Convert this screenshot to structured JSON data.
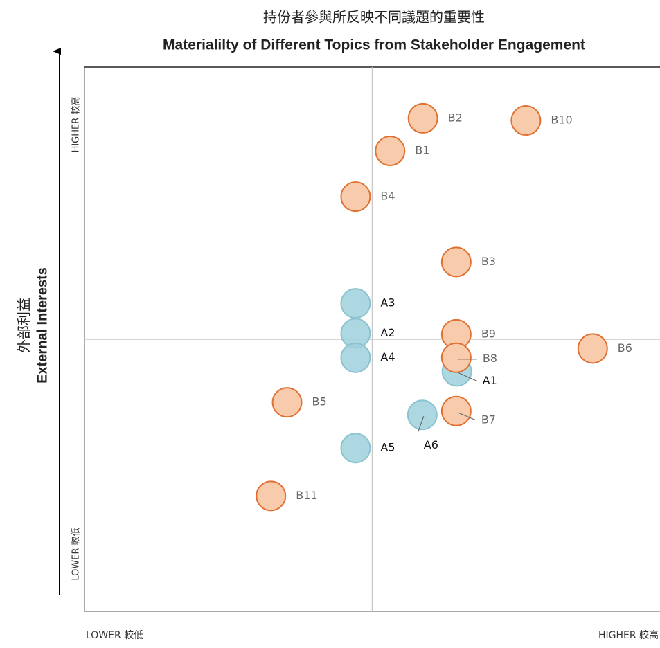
{
  "chart_data": {
    "type": "scatter",
    "title": "持份者參與所反映不同議題的重要性",
    "subtitle": "Materialilty of Different Topics from Stakeholder Engagement",
    "y_label_cn": "外部利益",
    "y_label": "External Interests",
    "y_high": "HIGHER 較高",
    "y_low": "LOWER 較低",
    "x_low": "LOWER 較低",
    "x_high": "HIGHER 較高",
    "xlim": [
      0,
      100
    ],
    "ylim": [
      0,
      100
    ],
    "quadrant_lines": {
      "x": 50,
      "y": 50
    },
    "points": [
      {
        "label": "B2",
        "x": 58.8,
        "y": 90.6,
        "color": "#f8cbad"
      },
      {
        "label": "B10",
        "x": 76.7,
        "y": 90.2,
        "color": "#f8cbad"
      },
      {
        "label": "B1",
        "x": 53.1,
        "y": 84.6,
        "color": "#f8cbad"
      },
      {
        "label": "B4",
        "x": 47.1,
        "y": 76.2,
        "color": "#f8cbad"
      },
      {
        "label": "B3",
        "x": 64.6,
        "y": 64.2,
        "color": "#f8cbad"
      },
      {
        "label": "A3",
        "x": 47.1,
        "y": 56.6,
        "color": "#9fd0dc"
      },
      {
        "label": "A2",
        "x": 47.1,
        "y": 51.1,
        "color": "#9fd0dc"
      },
      {
        "label": "B9",
        "x": 64.6,
        "y": 50.9,
        "color": "#f8cbad"
      },
      {
        "label": "B6",
        "x": 88.3,
        "y": 48.3,
        "color": "#f8cbad"
      },
      {
        "label": "A4",
        "x": 47.1,
        "y": 46.6,
        "color": "#9fd0dc"
      },
      {
        "label": "A1",
        "x": 64.7,
        "y": 44.1,
        "color": "#9fd0dc"
      },
      {
        "label": "B8",
        "x": 64.6,
        "y": 46.6,
        "color": "#f8cbad"
      },
      {
        "label": "B5",
        "x": 35.2,
        "y": 38.4,
        "color": "#f8cbad"
      },
      {
        "label": "A6",
        "x": 58.7,
        "y": 36.1,
        "color": "#9fd0dc"
      },
      {
        "label": "B7",
        "x": 64.6,
        "y": 36.8,
        "color": "#f8cbad"
      },
      {
        "label": "A5",
        "x": 47.1,
        "y": 30.0,
        "color": "#9fd0dc"
      },
      {
        "label": "B11",
        "x": 32.4,
        "y": 21.2,
        "color": "#f8cbad"
      }
    ]
  }
}
